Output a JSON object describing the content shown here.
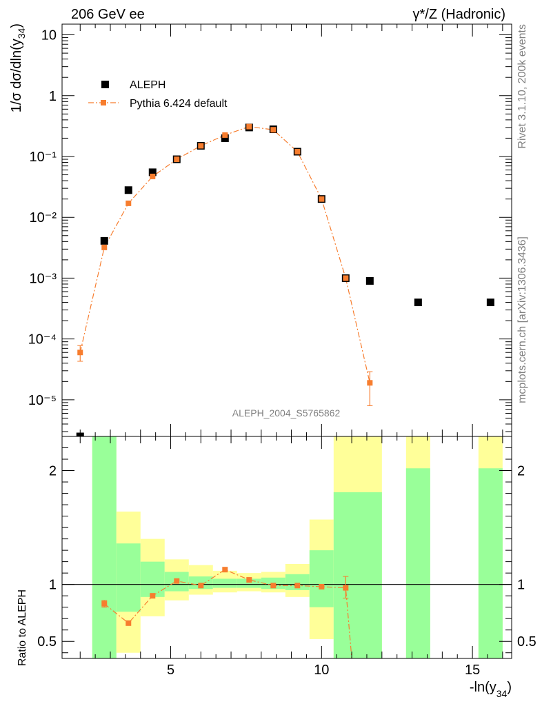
{
  "header": {
    "left_label": "206 GeV ee",
    "right_label": "γ*/Z (Hadronic)"
  },
  "side_labels": {
    "rivet": "Rivet 3.1.10,  200k events",
    "mcplots": "mcplots.cern.ch [arXiv:1306.3436]"
  },
  "analysis_label": "ALEPH_2004_S5765862",
  "colors": {
    "data": "#000000",
    "mc": "#f77d2e",
    "band_outer": "#ffff99",
    "band_inner": "#99ff99"
  },
  "chart_data": [
    {
      "type": "scatter",
      "panel": "main",
      "ylabel": "1/σ  dσ/dln(y34)",
      "yscale": "log",
      "xlim": [
        1.4,
        16.3
      ],
      "ylim": [
        2.5e-06,
        15
      ],
      "y_ticks": [
        "10⁻⁵",
        "10⁻⁴",
        "10⁻³",
        "10⁻²",
        "10⁻¹",
        "1",
        "10"
      ],
      "legend_position": "top-left",
      "series": [
        {
          "name": "ALEPH",
          "marker": "square",
          "x": [
            2.0,
            2.8,
            3.6,
            4.4,
            5.2,
            6.0,
            6.8,
            7.6,
            8.4,
            9.2,
            10.0,
            10.8,
            11.6,
            13.2,
            15.6
          ],
          "y": [
            2.5e-06,
            0.0041,
            0.028,
            0.055,
            0.09,
            0.15,
            0.2,
            0.3,
            0.28,
            0.12,
            0.02,
            0.001,
            0.0009,
            0.0004,
            0.0004
          ]
        },
        {
          "name": "Pythia 6.424 default",
          "marker": "square-line",
          "x": [
            2.0,
            2.8,
            3.6,
            4.4,
            5.2,
            6.0,
            6.8,
            7.6,
            8.4,
            9.2,
            10.0,
            10.8,
            11.6
          ],
          "y": [
            6e-05,
            0.0032,
            0.017,
            0.047,
            0.09,
            0.15,
            0.225,
            0.31,
            0.275,
            0.12,
            0.02,
            0.001,
            1.9e-05
          ],
          "err_low": [
            4.3e-05,
            null,
            null,
            null,
            null,
            null,
            null,
            null,
            null,
            null,
            null,
            null,
            8e-06
          ],
          "err_high": [
            7.8e-05,
            null,
            null,
            null,
            null,
            null,
            null,
            null,
            null,
            null,
            null,
            null,
            2.9e-05
          ]
        }
      ]
    },
    {
      "type": "line",
      "panel": "ratio",
      "xlabel": "-ln(y34)",
      "ylabel": "Ratio to ALEPH",
      "xlim": [
        1.4,
        16.3
      ],
      "ylim": [
        0.35,
        2.3
      ],
      "x_ticks": [
        "5",
        "10",
        "15"
      ],
      "y_ticks": [
        "0.5",
        "1",
        "2"
      ],
      "reference_line": 1,
      "bands": {
        "bins": [
          [
            2.4,
            3.2
          ],
          [
            3.2,
            4.0
          ],
          [
            4.0,
            4.8
          ],
          [
            4.8,
            5.6
          ],
          [
            5.6,
            6.4
          ],
          [
            6.4,
            7.2
          ],
          [
            7.2,
            8.0
          ],
          [
            8.0,
            8.8
          ],
          [
            8.8,
            9.6
          ],
          [
            9.6,
            10.4
          ],
          [
            10.4,
            12.0
          ],
          [
            12.8,
            13.6
          ],
          [
            15.2,
            16.0
          ]
        ],
        "outer_low": [
          0.3,
          0.4,
          0.72,
          0.86,
          0.91,
          0.93,
          0.94,
          0.93,
          0.89,
          0.52,
          0.3,
          0.3,
          0.3
        ],
        "outer_high": [
          2.5,
          1.64,
          1.4,
          1.22,
          1.17,
          1.12,
          1.1,
          1.11,
          1.18,
          1.57,
          2.5,
          2.5,
          2.5
        ],
        "inner_low": [
          0.3,
          0.76,
          0.89,
          0.94,
          0.96,
          0.97,
          0.97,
          0.96,
          0.95,
          0.8,
          0.3,
          0.3,
          0.3
        ],
        "inner_high": [
          2.5,
          1.36,
          1.2,
          1.11,
          1.07,
          1.05,
          1.05,
          1.06,
          1.09,
          1.3,
          1.81,
          2.02,
          2.02
        ]
      },
      "series": [
        {
          "name": "Pythia 6.424 default",
          "x": [
            2.8,
            3.6,
            4.4,
            5.2,
            6.0,
            6.8,
            7.6,
            8.4,
            9.2,
            10.0,
            10.8,
            11.0
          ],
          "y": [
            0.83,
            0.66,
            0.9,
            1.03,
            0.99,
            1.13,
            1.04,
            0.99,
            0.99,
            0.98,
            0.97,
            0.3
          ],
          "err_low": [
            0.8,
            null,
            null,
            null,
            null,
            null,
            null,
            null,
            null,
            null,
            0.88,
            null
          ],
          "err_high": [
            0.86,
            null,
            null,
            null,
            null,
            null,
            null,
            null,
            null,
            null,
            1.07,
            null
          ]
        }
      ]
    }
  ]
}
